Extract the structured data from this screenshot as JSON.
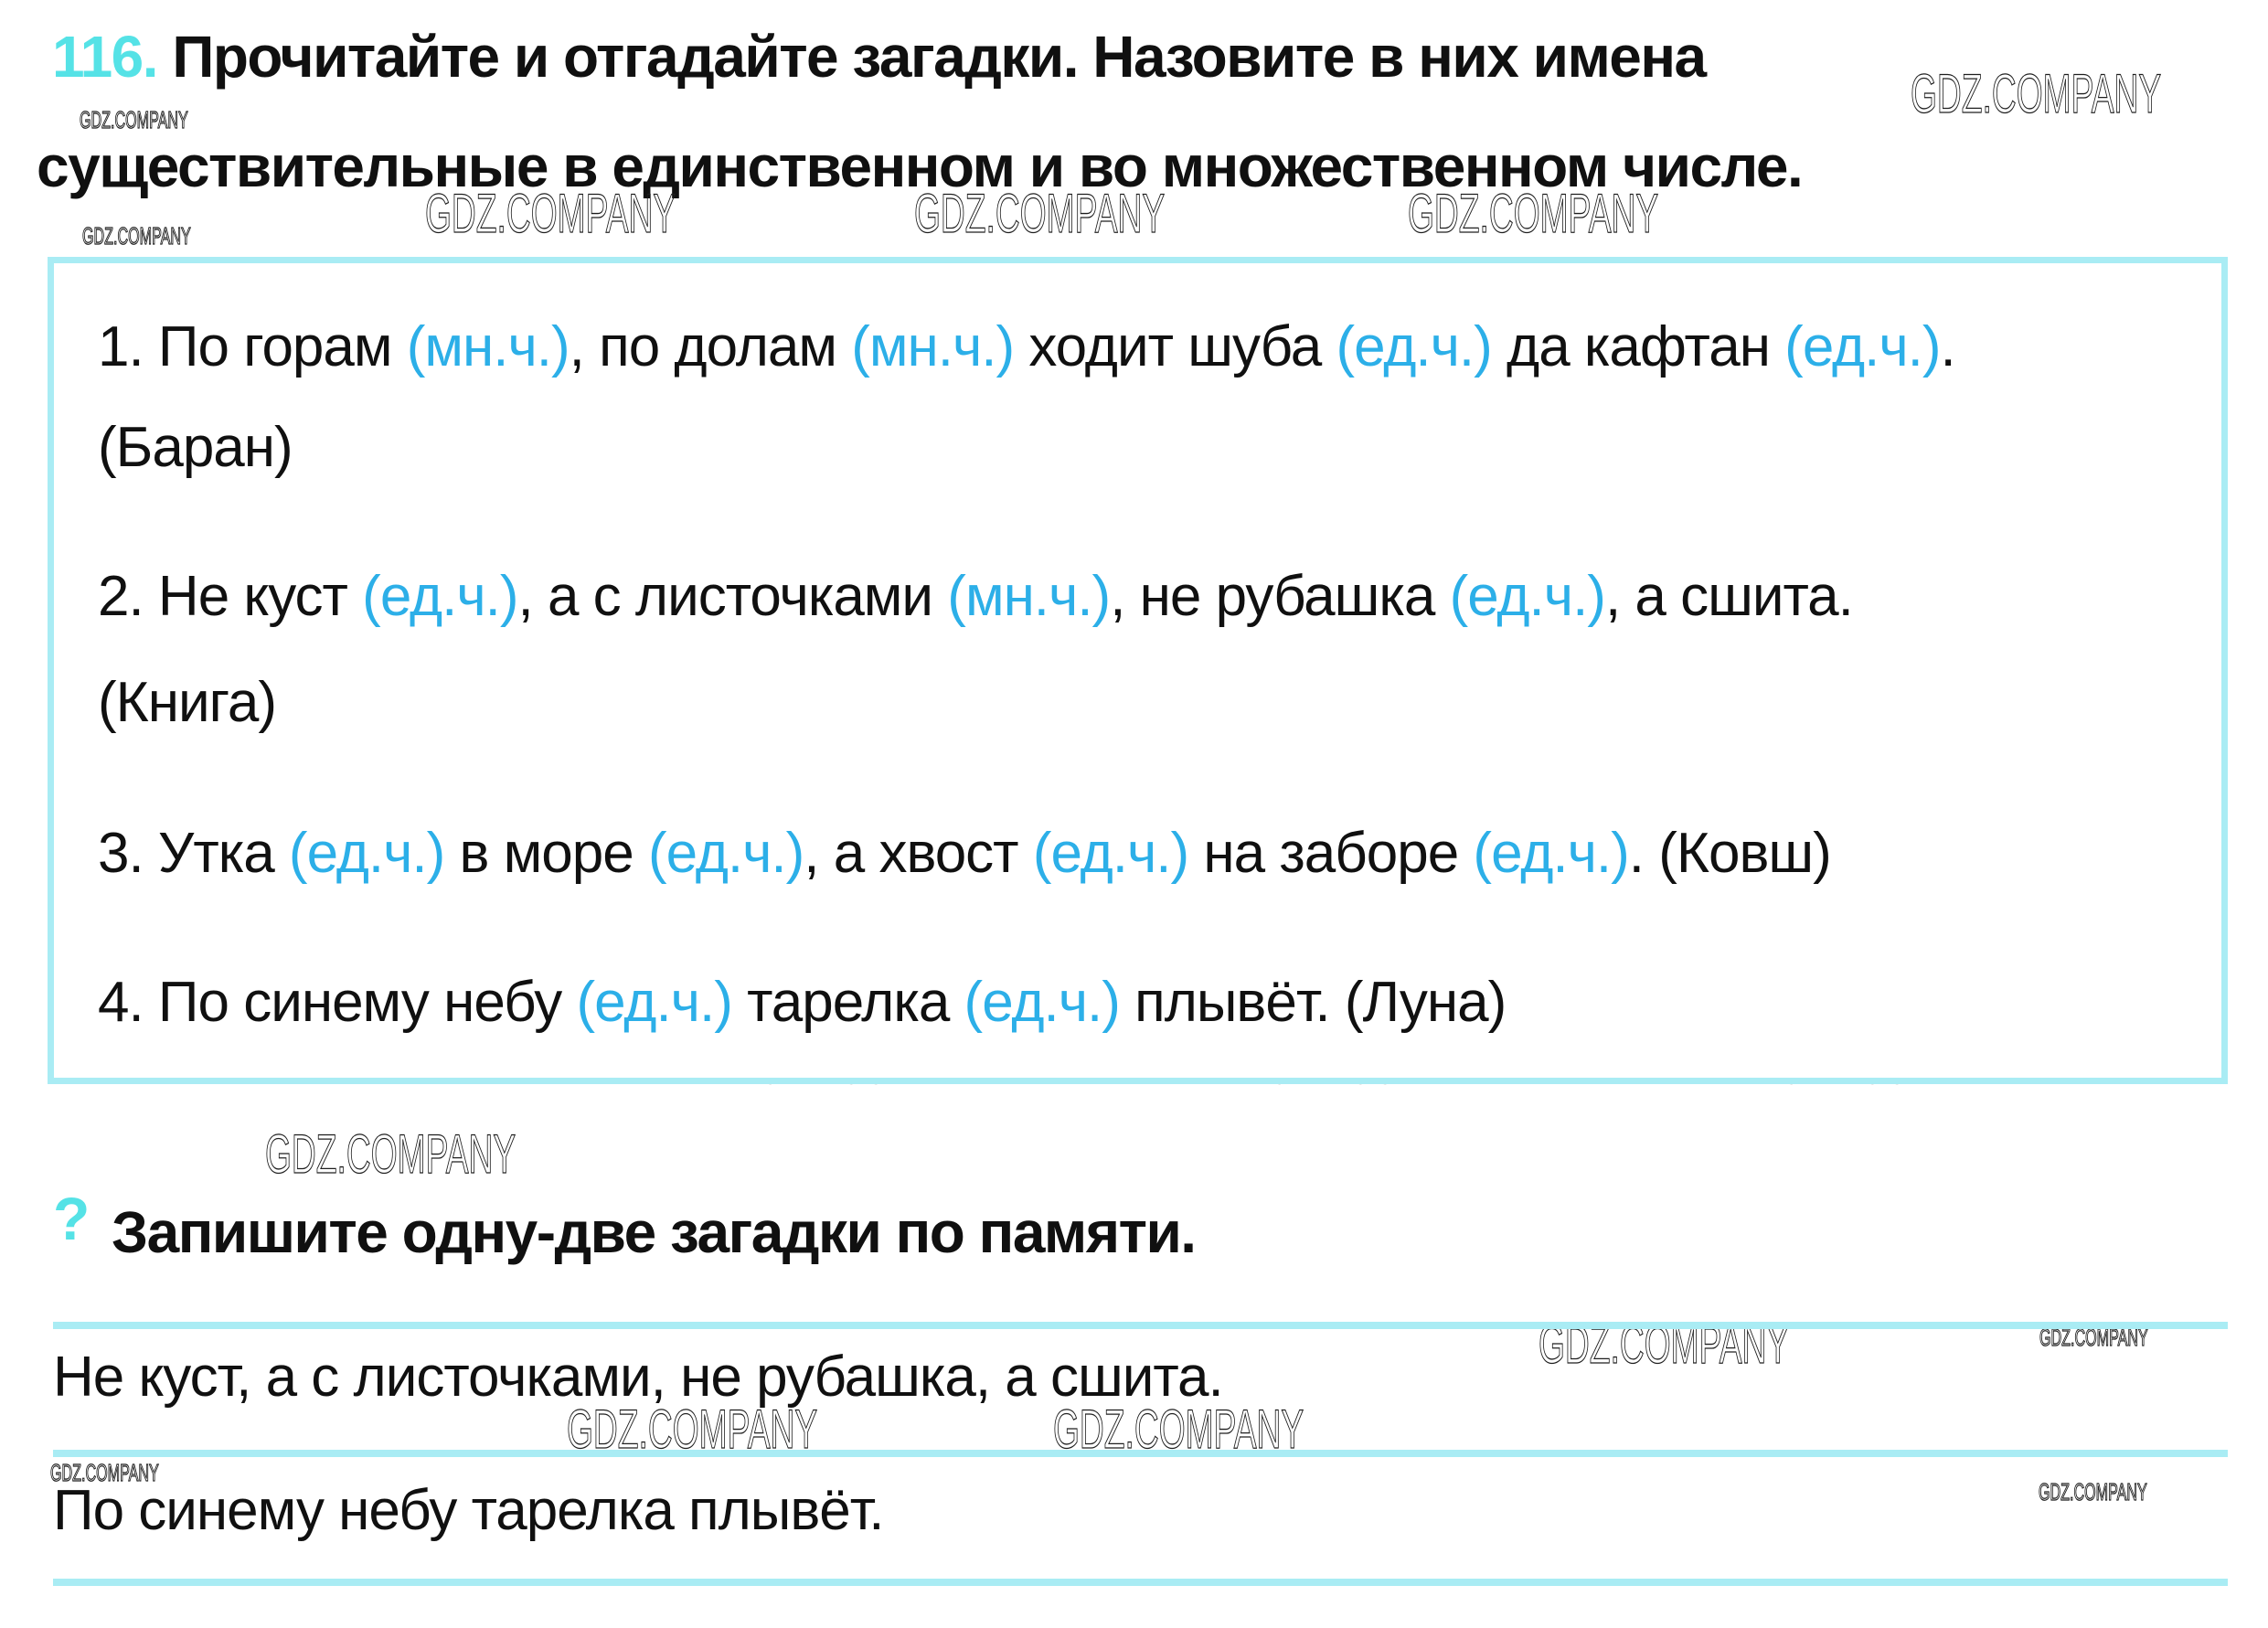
{
  "colors": {
    "accent_turquoise": "#55E2E6",
    "annotation_blue": "#2CAFE8",
    "frame_cyan": "#A9ECF4",
    "text": "#101010"
  },
  "watermark": {
    "text": "GDZ.COMPANY"
  },
  "header": {
    "exercise_number": "116.",
    "title_line1": "Прочитайте и отгадайте загадки. Назовите в них имена",
    "title_line2": "существительные в единственном и во множественном числе."
  },
  "riddles_box": {
    "riddles": [
      {
        "segments": [
          {
            "t": "1. По горам "
          },
          {
            "t": "(мн.ч.)",
            "c": true
          },
          {
            "t": ", по долам "
          },
          {
            "t": "(мн.ч.)",
            "c": true
          },
          {
            "t": " ходит шуба "
          },
          {
            "t": "(ед.ч.)",
            "c": true
          },
          {
            "t": " да кафтан "
          },
          {
            "t": "(ед.ч.)",
            "c": true
          },
          {
            "t": "."
          }
        ],
        "answer_line": "(Баран)"
      },
      {
        "segments": [
          {
            "t": "2. Не куст "
          },
          {
            "t": "(ед.ч.)",
            "c": true
          },
          {
            "t": ", а с листочками "
          },
          {
            "t": "(мн.ч.)",
            "c": true
          },
          {
            "t": ", не рубашка "
          },
          {
            "t": "(ед.ч.)",
            "c": true
          },
          {
            "t": ", а сшита."
          }
        ],
        "answer_line": "(Книга)"
      },
      {
        "segments": [
          {
            "t": "3. Утка "
          },
          {
            "t": "(ед.ч.)",
            "c": true
          },
          {
            "t": " в море "
          },
          {
            "t": "(ед.ч.)",
            "c": true
          },
          {
            "t": ", а хвост "
          },
          {
            "t": "(ед.ч.)",
            "c": true
          },
          {
            "t": " на заборе "
          },
          {
            "t": "(ед.ч.)",
            "c": true
          },
          {
            "t": ". (Ковш)"
          }
        ],
        "answer_line": ""
      },
      {
        "segments": [
          {
            "t": "4. По синему небу "
          },
          {
            "t": "(ед.ч.)",
            "c": true
          },
          {
            "t": " тарелка "
          },
          {
            "t": "(ед.ч.)",
            "c": true
          },
          {
            "t": " плывёт. (Луна)"
          }
        ],
        "answer_line": ""
      }
    ]
  },
  "task2": {
    "question_mark": "?",
    "text": "Запишите одну-две загадки по памяти."
  },
  "written_answers": {
    "line1": "Не куст, а с листочками, не рубашка, а сшита.",
    "line2": "По синему небу тарелка плывёт."
  }
}
